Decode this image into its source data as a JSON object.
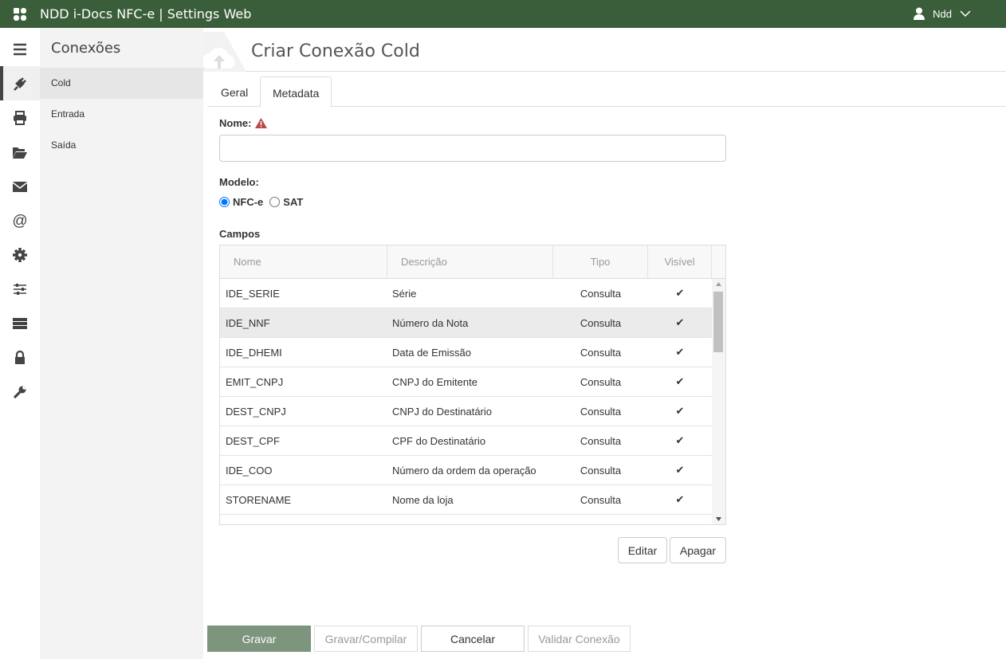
{
  "app": {
    "title": "NDD i-Docs NFC-e | Settings Web",
    "user": "Ndd",
    "brand_color": "#3a5e3a"
  },
  "iconbar": [
    "menu-icon",
    "plug-icon",
    "printer-icon",
    "folder-open-icon",
    "envelope-icon",
    "at-icon",
    "gear-icon",
    "sliders-icon",
    "server-icon",
    "lock-icon",
    "wrench-icon"
  ],
  "subnav": {
    "title": "Conexões",
    "items": [
      {
        "label": "Cold",
        "active": true
      },
      {
        "label": "Entrada"
      },
      {
        "label": "Saída"
      }
    ]
  },
  "page": {
    "title": "Criar Conexão Cold",
    "tabs": [
      {
        "label": "Geral"
      },
      {
        "label": "Metadata",
        "active": true
      }
    ]
  },
  "form": {
    "nome_label": "Nome:",
    "nome_value": "",
    "modelo_label": "Modelo:",
    "modelo_options": [
      "NFC-e",
      "SAT"
    ],
    "modelo_selected": "NFC-e",
    "campos_label": "Campos"
  },
  "grid": {
    "columns": [
      "Nome",
      "Descrição",
      "Tipo",
      "Visível"
    ],
    "rows": [
      [
        "IDE_SERIE",
        "Série",
        "Consulta",
        "✔"
      ],
      [
        "IDE_NNF",
        "Número da Nota",
        "Consulta",
        "✔"
      ],
      [
        "IDE_DHEMI",
        "Data de Emissão",
        "Consulta",
        "✔"
      ],
      [
        "EMIT_CNPJ",
        "CNPJ do Emitente",
        "Consulta",
        "✔"
      ],
      [
        "DEST_CNPJ",
        "CNPJ do Destinatário",
        "Consulta",
        "✔"
      ],
      [
        "DEST_CPF",
        "CPF do Destinatário",
        "Consulta",
        "✔"
      ],
      [
        "IDE_COO",
        "Número da ordem da operação",
        "Consulta",
        "✔"
      ],
      [
        "STORENAME",
        "Nome da loja",
        "Consulta",
        "✔"
      ]
    ],
    "selected_row": 1
  },
  "actions": {
    "edit": "Editar",
    "delete": "Apagar"
  },
  "footer": {
    "save": "Gravar",
    "save_compile": "Gravar/Compilar",
    "cancel": "Cancelar",
    "validate": "Validar Conexão"
  }
}
